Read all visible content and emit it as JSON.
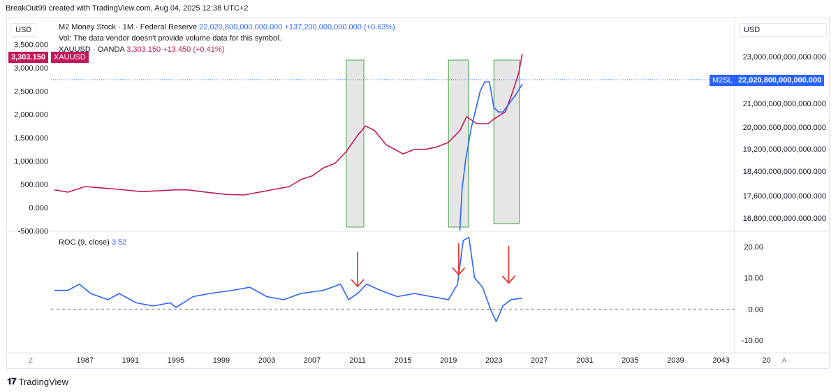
{
  "header": {
    "attribution": "BreakOut99 created with TradingView.com, Aug 04, 2025 12:38 UTC+2"
  },
  "currency_left": "USD",
  "currency_right": "USD",
  "legend": {
    "m2_title": "M2 Money Stock · 1M · Federal Reserve",
    "m2_value": "22,020,800,000,000.000",
    "m2_change": "+137,200,000,000.000 (+0.63%)",
    "vol_note": "Vol: The data vendor doesn't provide volume data for this symbol.",
    "xau_title": "XAUUSD · OANDA",
    "xau_value": "3,303.150",
    "xau_change": "+13.450 (+0.41%)"
  },
  "badges": {
    "xau_price": "3,303.150",
    "xau_symbol": "XAUUSD",
    "m2_symbol": "M2SL",
    "m2_price": "22,020,800,000,000.000"
  },
  "roc_legend": {
    "label": "ROC (9, close)",
    "value": "3.52"
  },
  "footer": {
    "brand": "TradingView",
    "z_label": "Z",
    "a_label": "A"
  },
  "colors": {
    "gold_line": "#c2185b",
    "m2_line": "#2962ff",
    "roc_line": "#2962ff",
    "arrow": "#e53935",
    "box_fill": "#e6e6e6",
    "box_stroke": "#43a047"
  },
  "chart_data": [
    {
      "type": "line",
      "x_ticks": [
        "1987",
        "1991",
        "1995",
        "1999",
        "2003",
        "2007",
        "2011",
        "2015",
        "2019",
        "2023",
        "2027",
        "2031",
        "2035",
        "2039",
        "2043",
        "20"
      ],
      "xlim": [
        1984.0,
        2044.2
      ],
      "left_axis": {
        "ticks": [
          "3,500.000",
          "3,000.000",
          "2,500.000",
          "2,000.000",
          "1,500.000",
          "1,000.000",
          "500.000",
          "0.000",
          "-500.000"
        ],
        "ylim": [
          -500,
          3650
        ]
      },
      "right_axis": {
        "ticks": [
          "23,000,000,000,000.000",
          "21,000,000,000,000.000",
          "20,000,000,000,000.000",
          "19,200,000,000,000.000",
          "18,400,000,000,000.000",
          "17,600,000,000,000.000",
          "16,800,000,000,000.000"
        ]
      },
      "series": [
        {
          "name": "XAUUSD",
          "axis": "left",
          "x": [
            1984.3,
            1985.5,
            1987.0,
            1988.0,
            1990.0,
            1992.0,
            1995.0,
            1996.0,
            1998.0,
            1999.5,
            2001.0,
            2003.0,
            2005.0,
            2006.0,
            2007.0,
            2008.0,
            2009.0,
            2010.0,
            2011.0,
            2011.7,
            2012.5,
            2013.5,
            2015.0,
            2016.0,
            2017.0,
            2018.0,
            2019.0,
            2020.0,
            2020.6,
            2021.5,
            2022.5,
            2023.0,
            2024.0,
            2024.6,
            2025.2,
            2025.5
          ],
          "y": [
            380,
            330,
            450,
            430,
            390,
            340,
            380,
            380,
            320,
            280,
            270,
            360,
            450,
            600,
            680,
            850,
            950,
            1200,
            1550,
            1750,
            1650,
            1350,
            1150,
            1250,
            1250,
            1300,
            1400,
            1650,
            1950,
            1800,
            1800,
            1900,
            2050,
            2450,
            2900,
            3300
          ]
        },
        {
          "name": "M2SL",
          "axis": "left",
          "x": [
            2020.0,
            2020.05,
            2020.2,
            2020.5,
            2021.0,
            2021.4,
            2021.8,
            2022.2,
            2022.6,
            2023.0,
            2023.4,
            2023.8,
            2024.4,
            2025.0,
            2025.5
          ],
          "y": [
            -500,
            -250,
            400,
            1000,
            1700,
            2100,
            2500,
            2700,
            2700,
            2150,
            2050,
            2050,
            2250,
            2450,
            2650
          ]
        }
      ]
    },
    {
      "type": "line",
      "title": "ROC (9, close)",
      "x_ticks": [
        "1987",
        "1991",
        "1995",
        "1999",
        "2003",
        "2007",
        "2011",
        "2015",
        "2019",
        "2023",
        "2027",
        "2031",
        "2035",
        "2039",
        "2043",
        "20"
      ],
      "ylim": [
        -12,
        24
      ],
      "y_ticks": [
        "20.00",
        "10.00",
        "0.00",
        "-10.00"
      ],
      "zero_line": 0,
      "series": [
        {
          "name": "ROC",
          "value": 3.52,
          "x": [
            1984.3,
            1985.5,
            1986.5,
            1987.5,
            1989.0,
            1990.0,
            1991.5,
            1993.0,
            1994.5,
            1995.0,
            1996.5,
            1998.0,
            2000.0,
            2001.5,
            2003.0,
            2004.5,
            2006.0,
            2008.0,
            2009.5,
            2010.2,
            2011.0,
            2011.8,
            2013.0,
            2014.5,
            2016.0,
            2017.5,
            2019.0,
            2019.8,
            2020.3,
            2020.8,
            2021.3,
            2022.0,
            2022.7,
            2023.2,
            2023.8,
            2024.5,
            2025.5
          ],
          "y": [
            6,
            6,
            8,
            5,
            3,
            5,
            2,
            1,
            2,
            0.5,
            4,
            5,
            6,
            7,
            4,
            3,
            5,
            6,
            8,
            3,
            5,
            8,
            6,
            4,
            5,
            4,
            3,
            8,
            22,
            23,
            10,
            7,
            0,
            -4,
            1,
            3,
            3.5
          ]
        }
      ]
    }
  ]
}
